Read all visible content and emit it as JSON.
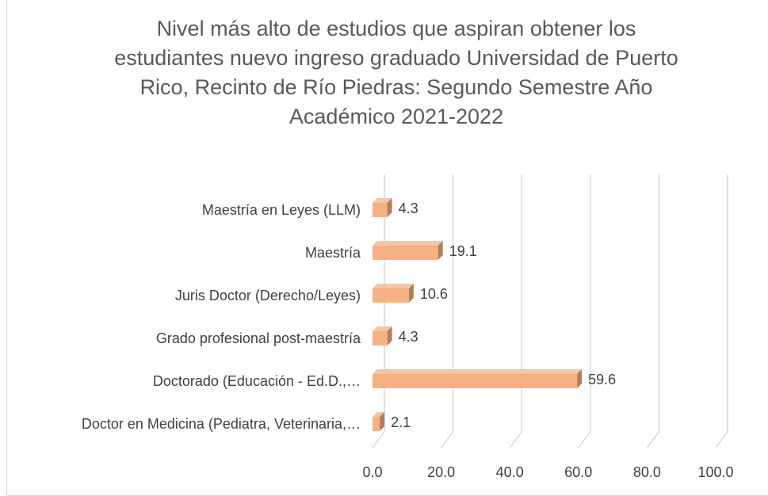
{
  "chart_data": {
    "type": "bar3d_horizontal",
    "title": "Nivel más alto de estudios que aspiran obtener los estudiantes nuevo ingreso graduado Universidad de Puerto Rico, Recinto de Río Piedras: Segundo Semestre Año Académico 2021-2022",
    "categories": [
      "Maestría en Leyes (LLM)",
      "Maestría",
      "Juris Doctor (Derecho/Leyes)",
      "Grado profesional post-maestría",
      "Doctorado (Educación - Ed.D.,…",
      "Doctor en Medicina (Pediatra, Veterinaria,…"
    ],
    "values": [
      4.3,
      19.1,
      10.6,
      4.3,
      59.6,
      2.1
    ],
    "color": "#f4b183",
    "xlim": [
      0,
      100
    ],
    "xticks": [
      {
        "value": 0,
        "label": "0.0"
      },
      {
        "value": 20,
        "label": "20.0"
      },
      {
        "value": 40,
        "label": "40.0"
      },
      {
        "value": 60,
        "label": "60.0"
      },
      {
        "value": 80,
        "label": "80.0"
      },
      {
        "value": 100,
        "label": "100.0"
      }
    ],
    "grid": true
  }
}
